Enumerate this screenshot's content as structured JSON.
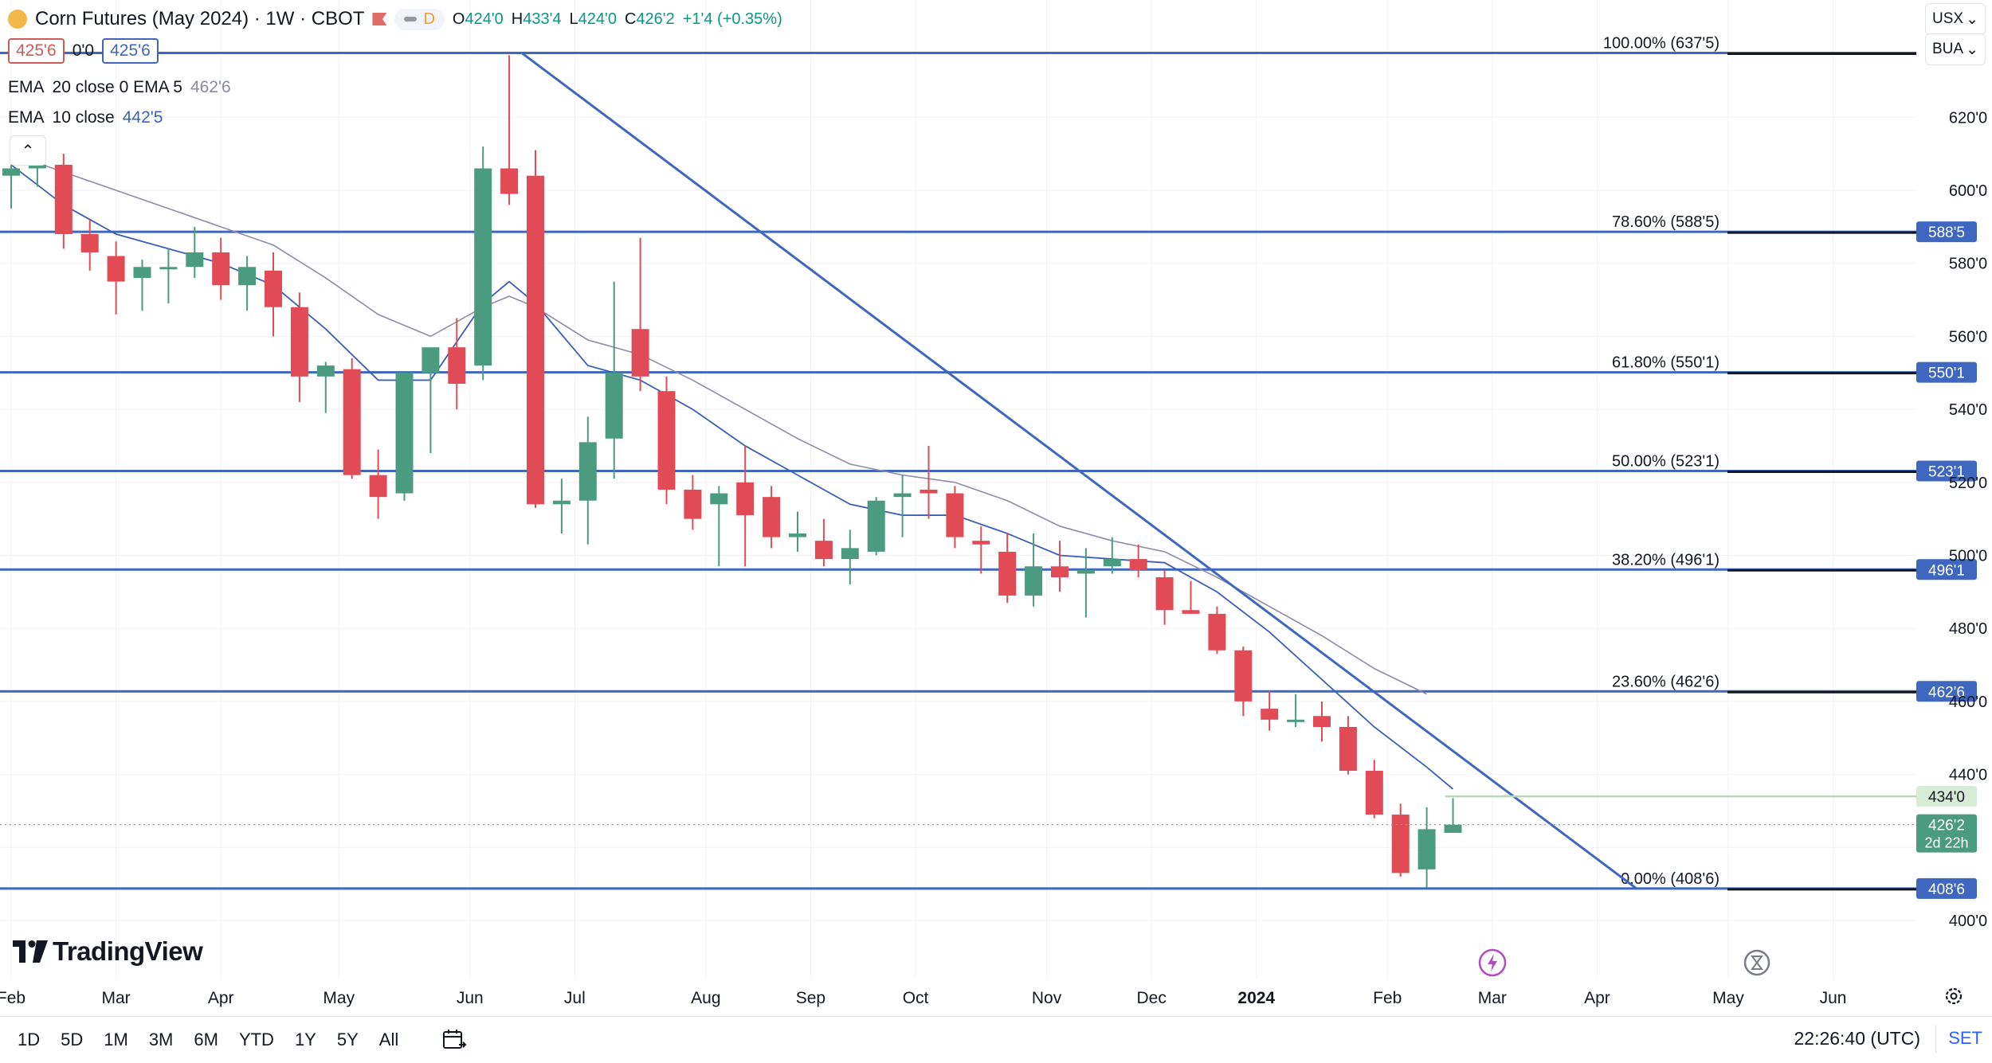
{
  "header": {
    "title": "Corn Futures (May 2024) · 1W · CBOT",
    "interval_badge": "D",
    "open_label": "O",
    "open": "424'0",
    "high_label": "H",
    "high": "433'4",
    "low_label": "L",
    "low": "424'0",
    "close_label": "C",
    "close": "426'2",
    "change": "+1'4 (+0.35%)"
  },
  "bid_ask": {
    "bid": "425'6",
    "spread": "0'0",
    "ask": "425'6"
  },
  "indicators": [
    {
      "label": "EMA",
      "params": "20 close 0 EMA 5",
      "value": "462'6"
    },
    {
      "label": "EMA",
      "params": "10 close",
      "value": "442'5"
    }
  ],
  "right_selectors": {
    "top": "USX",
    "bottom": "BUA"
  },
  "timeframes": [
    "1D",
    "5D",
    "1M",
    "3M",
    "6M",
    "YTD",
    "1Y",
    "5Y",
    "All"
  ],
  "clock": "22:26:40 (UTC)",
  "set_label": "SET",
  "brand": "TradingView",
  "colors": {
    "up": "#4a9b80",
    "down": "#e04b55",
    "fib": "#3f67c0",
    "ema_slow": "#8f8ca6",
    "ema_fast": "#3a5fb8"
  },
  "icons": {
    "lightning": "lightning-icon",
    "hourglass": "hourglass-icon",
    "settings": "gear-icon",
    "calendar": "calendar-icon",
    "collapse": "chevron-up-icon"
  },
  "chart_data": {
    "type": "candlestick",
    "price_unit": "cents/bu (quoted in eighths)",
    "y_range": [
      395,
      645
    ],
    "y_ticks": [
      {
        "value": 400,
        "label": "400'0"
      },
      {
        "value": 420,
        "label": ""
      },
      {
        "value": 440,
        "label": "440'0"
      },
      {
        "value": 460,
        "label": "460'0"
      },
      {
        "value": 480,
        "label": "480'0"
      },
      {
        "value": 500,
        "label": "500'0"
      },
      {
        "value": 520,
        "label": "520'0"
      },
      {
        "value": 540,
        "label": "540'0"
      },
      {
        "value": 560,
        "label": "560'0"
      },
      {
        "value": 580,
        "label": "580'0"
      },
      {
        "value": 600,
        "label": "600'0"
      },
      {
        "value": 620,
        "label": "620'0"
      }
    ],
    "x_ticks": [
      {
        "week": 0,
        "label": "Feb"
      },
      {
        "week": 4,
        "label": "Mar"
      },
      {
        "week": 8,
        "label": "Apr"
      },
      {
        "week": 12.5,
        "label": "May"
      },
      {
        "week": 17.5,
        "label": "Jun"
      },
      {
        "week": 21.5,
        "label": "Jul"
      },
      {
        "week": 26.5,
        "label": "Aug"
      },
      {
        "week": 30.5,
        "label": "Sep"
      },
      {
        "week": 34.5,
        "label": "Oct"
      },
      {
        "week": 39.5,
        "label": "Nov"
      },
      {
        "week": 43.5,
        "label": "Dec"
      },
      {
        "week": 47.5,
        "label": "2024"
      },
      {
        "week": 52.5,
        "label": "Feb"
      },
      {
        "week": 56.5,
        "label": "Mar"
      },
      {
        "week": 60.5,
        "label": "Apr"
      },
      {
        "week": 65.5,
        "label": "May"
      },
      {
        "week": 69.5,
        "label": "Jun"
      }
    ],
    "candles": [
      {
        "o": 604,
        "h": 607,
        "l": 595,
        "c": 606
      },
      {
        "o": 606,
        "h": 609,
        "l": 601,
        "c": 607
      },
      {
        "o": 607,
        "h": 610,
        "l": 584,
        "c": 588
      },
      {
        "o": 588,
        "h": 592,
        "l": 578,
        "c": 583
      },
      {
        "o": 582,
        "h": 586,
        "l": 566,
        "c": 575
      },
      {
        "o": 576,
        "h": 581,
        "l": 567,
        "c": 579
      },
      {
        "o": 579,
        "h": 584,
        "l": 569,
        "c": 579
      },
      {
        "o": 579,
        "h": 590,
        "l": 576,
        "c": 583
      },
      {
        "o": 583,
        "h": 587,
        "l": 570,
        "c": 574
      },
      {
        "o": 574,
        "h": 582,
        "l": 567,
        "c": 579
      },
      {
        "o": 578,
        "h": 583,
        "l": 560,
        "c": 568
      },
      {
        "o": 568,
        "h": 572,
        "l": 542,
        "c": 549
      },
      {
        "o": 549,
        "h": 553,
        "l": 539,
        "c": 552
      },
      {
        "o": 551,
        "h": 554,
        "l": 521,
        "c": 522
      },
      {
        "o": 522,
        "h": 529,
        "l": 510,
        "c": 516
      },
      {
        "o": 517,
        "h": 550,
        "l": 515,
        "c": 550
      },
      {
        "o": 550,
        "h": 555,
        "l": 528,
        "c": 557
      },
      {
        "o": 557,
        "h": 565,
        "l": 540,
        "c": 547
      },
      {
        "o": 552,
        "h": 612,
        "l": 548,
        "c": 606
      },
      {
        "o": 606,
        "h": 637,
        "l": 596,
        "c": 599
      },
      {
        "o": 604,
        "h": 611,
        "l": 513,
        "c": 514
      },
      {
        "o": 514,
        "h": 521,
        "l": 506,
        "c": 515
      },
      {
        "o": 515,
        "h": 538,
        "l": 503,
        "c": 531
      },
      {
        "o": 532,
        "h": 575,
        "l": 521,
        "c": 550
      },
      {
        "o": 562,
        "h": 587,
        "l": 545,
        "c": 549
      },
      {
        "o": 545,
        "h": 549,
        "l": 514,
        "c": 518
      },
      {
        "o": 518,
        "h": 522,
        "l": 507,
        "c": 510
      },
      {
        "o": 514,
        "h": 519,
        "l": 497,
        "c": 517
      },
      {
        "o": 520,
        "h": 530,
        "l": 497,
        "c": 511
      },
      {
        "o": 516,
        "h": 519,
        "l": 502,
        "c": 505
      },
      {
        "o": 505,
        "h": 512,
        "l": 501,
        "c": 506
      },
      {
        "o": 504,
        "h": 510,
        "l": 497,
        "c": 499
      },
      {
        "o": 499,
        "h": 507,
        "l": 492,
        "c": 502
      },
      {
        "o": 501,
        "h": 516,
        "l": 500,
        "c": 515
      },
      {
        "o": 516,
        "h": 522,
        "l": 505,
        "c": 517
      },
      {
        "o": 518,
        "h": 530,
        "l": 510,
        "c": 517
      },
      {
        "o": 517,
        "h": 519,
        "l": 502,
        "c": 505
      },
      {
        "o": 504,
        "h": 508,
        "l": 495,
        "c": 503
      },
      {
        "o": 501,
        "h": 506,
        "l": 487,
        "c": 489
      },
      {
        "o": 489,
        "h": 506,
        "l": 486,
        "c": 497
      },
      {
        "o": 497,
        "h": 504,
        "l": 490,
        "c": 494
      },
      {
        "o": 495,
        "h": 502,
        "l": 483,
        "c": 496
      },
      {
        "o": 497,
        "h": 505,
        "l": 495,
        "c": 499
      },
      {
        "o": 499,
        "h": 503,
        "l": 494,
        "c": 496
      },
      {
        "o": 494,
        "h": 496,
        "l": 481,
        "c": 485
      },
      {
        "o": 485,
        "h": 493,
        "l": 484,
        "c": 484
      },
      {
        "o": 484,
        "h": 486,
        "l": 473,
        "c": 474
      },
      {
        "o": 474,
        "h": 475,
        "l": 456,
        "c": 460
      },
      {
        "o": 458,
        "h": 463,
        "l": 452,
        "c": 455
      },
      {
        "o": 455,
        "h": 462,
        "l": 453,
        "c": 455
      },
      {
        "o": 456,
        "h": 460,
        "l": 449,
        "c": 453
      },
      {
        "o": 453,
        "h": 456,
        "l": 440,
        "c": 441
      },
      {
        "o": 441,
        "h": 444,
        "l": 428,
        "c": 429
      },
      {
        "o": 429,
        "h": 432,
        "l": 412,
        "c": 413
      },
      {
        "o": 414,
        "h": 431,
        "l": 409,
        "c": 425
      },
      {
        "o": 424,
        "h": 433.5,
        "l": 424,
        "c": 426.25
      }
    ],
    "ema_fast": [
      [
        0,
        607
      ],
      [
        2,
        596
      ],
      [
        4,
        588
      ],
      [
        6,
        584
      ],
      [
        8,
        580
      ],
      [
        10,
        574
      ],
      [
        12,
        562
      ],
      [
        14,
        548
      ],
      [
        16,
        548
      ],
      [
        18,
        569
      ],
      [
        19,
        575
      ],
      [
        20,
        569
      ],
      [
        22,
        552
      ],
      [
        24,
        548
      ],
      [
        26,
        540
      ],
      [
        28,
        530
      ],
      [
        30,
        522
      ],
      [
        32,
        514
      ],
      [
        34,
        511
      ],
      [
        36,
        511
      ],
      [
        38,
        506
      ],
      [
        40,
        500
      ],
      [
        42,
        499
      ],
      [
        44,
        498
      ],
      [
        46,
        490
      ],
      [
        48,
        479
      ],
      [
        50,
        466
      ],
      [
        52,
        453
      ],
      [
        54,
        442
      ],
      [
        55,
        436
      ]
    ],
    "ema_slow": [
      [
        0,
        610
      ],
      [
        2,
        605
      ],
      [
        4,
        600
      ],
      [
        6,
        595
      ],
      [
        8,
        590
      ],
      [
        10,
        585
      ],
      [
        12,
        576
      ],
      [
        14,
        566
      ],
      [
        16,
        560
      ],
      [
        18,
        568
      ],
      [
        19,
        571
      ],
      [
        20,
        568
      ],
      [
        22,
        559
      ],
      [
        24,
        555
      ],
      [
        26,
        548
      ],
      [
        28,
        540
      ],
      [
        30,
        532
      ],
      [
        32,
        525
      ],
      [
        34,
        522
      ],
      [
        36,
        520
      ],
      [
        38,
        515
      ],
      [
        40,
        508
      ],
      [
        42,
        504
      ],
      [
        44,
        501
      ],
      [
        46,
        494
      ],
      [
        48,
        486
      ],
      [
        50,
        478
      ],
      [
        52,
        469
      ],
      [
        54,
        462
      ]
    ],
    "trendline": {
      "from": {
        "week": 19.5,
        "price": 637.5
      },
      "to": {
        "week": 62,
        "price": 408.75
      }
    },
    "high_line": {
      "price": 434
    },
    "last_price": {
      "price": 426.25
    },
    "fib_levels": [
      {
        "pct": "100.00%",
        "price": 637.625,
        "label": "637'5",
        "axis_label": ""
      },
      {
        "pct": "78.60%",
        "price": 588.625,
        "label": "588'5",
        "axis_label": "588'5"
      },
      {
        "pct": "61.80%",
        "price": 550.125,
        "label": "550'1",
        "axis_label": "550'1"
      },
      {
        "pct": "50.00%",
        "price": 523.125,
        "label": "523'1",
        "axis_label": "523'1"
      },
      {
        "pct": "38.20%",
        "price": 496.125,
        "label": "496'1",
        "axis_label": "496'1"
      },
      {
        "pct": "23.60%",
        "price": 462.75,
        "label": "462'6",
        "axis_label": "462'6"
      },
      {
        "pct": "0.00%",
        "price": 408.75,
        "label": "408'6",
        "axis_label": "408'6"
      }
    ],
    "axis_badges": {
      "high": "434'0",
      "last": "426'2",
      "countdown": "2d 22h"
    }
  }
}
